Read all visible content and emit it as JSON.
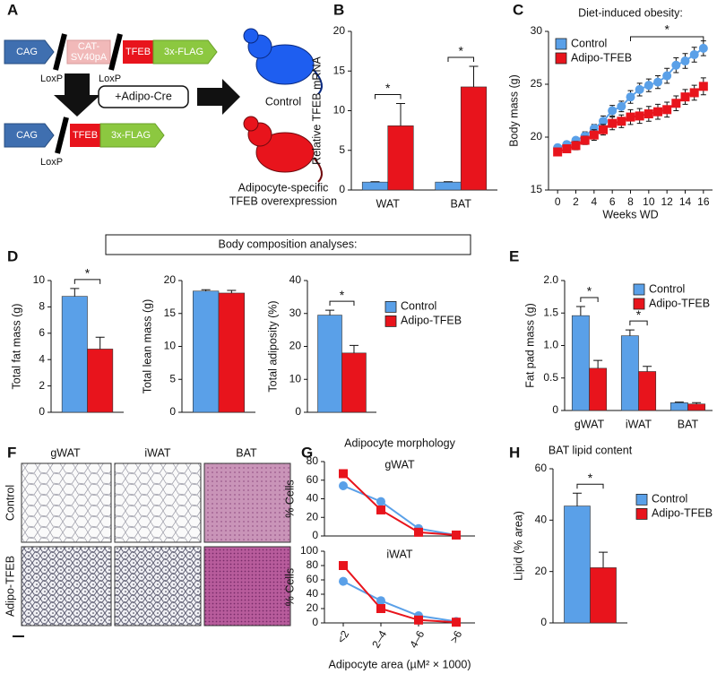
{
  "panel_labels": [
    "A",
    "B",
    "C",
    "D",
    "E",
    "F",
    "G",
    "H"
  ],
  "diagram": {
    "promoter": "CAG",
    "stop_cassette": [
      "CAT-",
      "SV40pA"
    ],
    "gene": "TFEB",
    "tag": "3x-FLAG",
    "loxp": "LoxP",
    "cre": "+Adipo-Cre",
    "mice": {
      "control": "Control",
      "transgenic": [
        "Adipocyte-specific",
        "TFEB overexpression"
      ]
    }
  },
  "section_header": "Body composition analyses:",
  "histology": {
    "columns": [
      "gWAT",
      "iWAT",
      "BAT"
    ],
    "rows": [
      "Control",
      "Adipo-TFEB"
    ]
  },
  "chart_data": [
    {
      "type": "bar",
      "ylabel": "Relative TFEB mRNA",
      "categories": [
        "WAT",
        "BAT"
      ],
      "series": [
        {
          "color": "#5aa0e8",
          "values": [
            1,
            1
          ],
          "errors": [
            0.05,
            0.05
          ]
        },
        {
          "color": "#e8141c",
          "values": [
            8.1,
            13
          ],
          "errors": [
            2.8,
            2.6
          ]
        }
      ],
      "annotations": [
        "*",
        "*"
      ],
      "ylim": [
        0,
        20
      ],
      "yticks": [
        0,
        5,
        10,
        15,
        20
      ]
    },
    {
      "type": "line",
      "title": "Diet-induced obesity:",
      "ylabel": "Body mass (g)",
      "xlabel": "Weeks WD",
      "x": [
        0,
        1,
        2,
        3,
        4,
        5,
        6,
        7,
        8,
        9,
        10,
        11,
        12,
        13,
        14,
        15,
        16
      ],
      "series": [
        {
          "name": "Control",
          "color": "#5aa0e8",
          "marker": "circle",
          "values": [
            19.0,
            19.3,
            19.7,
            20.1,
            20.8,
            21.5,
            22.5,
            22.9,
            23.8,
            24.5,
            24.9,
            25.2,
            25.8,
            26.8,
            27.2,
            27.8,
            28.4
          ],
          "errors": [
            0.3,
            0.3,
            0.3,
            0.4,
            0.4,
            0.5,
            0.5,
            0.5,
            0.6,
            0.6,
            0.6,
            0.6,
            0.7,
            0.7,
            0.7,
            0.7,
            0.7
          ]
        },
        {
          "name": "Adipo-TFEB",
          "color": "#e8141c",
          "marker": "square",
          "values": [
            18.6,
            18.9,
            19.2,
            19.7,
            20.2,
            20.7,
            21.3,
            21.5,
            21.9,
            22.0,
            22.2,
            22.4,
            22.6,
            23.2,
            23.8,
            24.2,
            24.8
          ],
          "errors": [
            0.3,
            0.3,
            0.4,
            0.4,
            0.5,
            0.5,
            0.6,
            0.6,
            0.7,
            0.7,
            0.7,
            0.7,
            0.7,
            0.7,
            0.7,
            0.7,
            0.8
          ]
        }
      ],
      "annotation": {
        "text": "*",
        "x": [
          8,
          16
        ]
      },
      "xlim": [
        -1,
        17
      ],
      "xticks": [
        0,
        2,
        4,
        6,
        8,
        10,
        12,
        14,
        16
      ],
      "ylim": [
        15,
        30
      ],
      "yticks": [
        15,
        20,
        25,
        30
      ],
      "legend": "upper left"
    },
    {
      "type": "bar",
      "ylabel": "Total fat mass (g)",
      "series": [
        {
          "color": "#5aa0e8",
          "values": [
            8.8
          ],
          "errors": [
            0.6
          ]
        },
        {
          "color": "#e8141c",
          "values": [
            4.8
          ],
          "errors": [
            0.9
          ]
        }
      ],
      "annotations": [
        "*"
      ],
      "ylim": [
        0,
        10
      ],
      "yticks": [
        0,
        2,
        4,
        6,
        8,
        10
      ]
    },
    {
      "type": "bar",
      "ylabel": "Total lean mass (g)",
      "series": [
        {
          "color": "#5aa0e8",
          "values": [
            18.4
          ],
          "errors": [
            0.2
          ]
        },
        {
          "color": "#e8141c",
          "values": [
            18.1
          ],
          "errors": [
            0.4
          ]
        }
      ],
      "ylim": [
        0,
        20
      ],
      "yticks": [
        0,
        5,
        10,
        15,
        20
      ]
    },
    {
      "type": "bar",
      "ylabel": "Total adiposity (%)",
      "series": [
        {
          "name": "Control",
          "color": "#5aa0e8",
          "values": [
            29.5
          ],
          "errors": [
            1.5
          ]
        },
        {
          "name": "Adipo-TFEB",
          "color": "#e8141c",
          "values": [
            18
          ],
          "errors": [
            2.3
          ]
        }
      ],
      "annotations": [
        "*"
      ],
      "ylim": [
        0,
        40
      ],
      "yticks": [
        0,
        10,
        20,
        30,
        40
      ],
      "legend": "right"
    },
    {
      "type": "bar",
      "ylabel": "Fat pad mass (g)",
      "categories": [
        "gWAT",
        "iWAT",
        "BAT"
      ],
      "series": [
        {
          "name": "Control",
          "color": "#5aa0e8",
          "values": [
            1.46,
            1.15,
            0.12
          ],
          "errors": [
            0.14,
            0.09,
            0.01
          ]
        },
        {
          "name": "Adipo-TFEB",
          "color": "#e8141c",
          "values": [
            0.65,
            0.6,
            0.1
          ],
          "errors": [
            0.12,
            0.08,
            0.02
          ]
        }
      ],
      "annotations": [
        "*",
        "*",
        null
      ],
      "ylim": [
        0,
        2
      ],
      "yticks": [
        0,
        0.5,
        {
          "value": 1,
          "label": "1.0"
        },
        1.5,
        {
          "value": 2,
          "label": "2.0"
        }
      ],
      "legend": "upper right"
    },
    {
      "type": "line",
      "title": "Adipocyte morphology",
      "label": "gWAT",
      "ylabel": "% Cells",
      "series": [
        {
          "color": "#5aa0e8",
          "marker": "circle",
          "values": [
            54,
            37,
            8,
            1
          ]
        },
        {
          "color": "#e8141c",
          "marker": "square",
          "values": [
            67,
            28,
            4,
            1
          ]
        }
      ],
      "ylim": [
        0,
        80
      ],
      "yticks": [
        0,
        20,
        40,
        60,
        80
      ]
    },
    {
      "type": "line",
      "label": "iWAT",
      "ylabel": "% Cells",
      "xlabel": "Adipocyte area (µM² × 1000)",
      "categories": [
        "<2",
        "2–4",
        "4–6",
        ">6"
      ],
      "series": [
        {
          "color": "#5aa0e8",
          "marker": "circle",
          "values": [
            58,
            31,
            10,
            2
          ]
        },
        {
          "color": "#e8141c",
          "marker": "square",
          "values": [
            80,
            20,
            4,
            1
          ]
        }
      ],
      "ylim": [
        0,
        100
      ],
      "yticks": [
        0,
        20,
        40,
        60,
        80,
        100
      ]
    },
    {
      "type": "bar",
      "title": "BAT lipid content",
      "ylabel": "Lipid (% area)",
      "series": [
        {
          "name": "Control",
          "color": "#5aa0e8",
          "values": [
            45.5
          ],
          "errors": [
            5
          ]
        },
        {
          "name": "Adipo-TFEB",
          "color": "#e8141c",
          "values": [
            21.5
          ],
          "errors": [
            6
          ]
        }
      ],
      "annotations": [
        "*"
      ],
      "ylim": [
        0,
        60
      ],
      "yticks": [
        0,
        20,
        40,
        60
      ],
      "legend": "right"
    }
  ]
}
